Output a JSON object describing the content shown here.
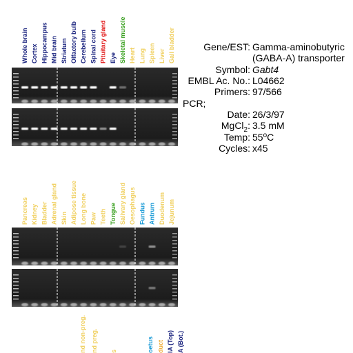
{
  "lanes": {
    "top": [
      {
        "label": "Whole brain",
        "color": "#1a237e"
      },
      {
        "label": "Cortex",
        "color": "#1a237e"
      },
      {
        "label": "Hippocampus",
        "color": "#1a237e"
      },
      {
        "label": "Mid brain",
        "color": "#1a237e"
      },
      {
        "label": "Striatum",
        "color": "#1a237e"
      },
      {
        "label": "Olfactory bulb",
        "color": "#1a237e"
      },
      {
        "label": "Cerebellum",
        "color": "#1a237e"
      },
      {
        "label": "Spinal cord",
        "color": "#1a237e"
      },
      {
        "label": "Pituitary gland",
        "color": "#e01010"
      },
      {
        "label": "Eye",
        "color": "#1a237e"
      },
      {
        "label": "Skeletal muscle",
        "color": "#3aa020"
      },
      {
        "label": "Heart",
        "color": "#f0d060"
      },
      {
        "label": "Lung",
        "color": "#f0d060"
      },
      {
        "label": "Spleen",
        "color": "#f0d060"
      },
      {
        "label": "Liver",
        "color": "#f0d060"
      },
      {
        "label": "Gall bladder",
        "color": "#f0d060"
      }
    ],
    "middle": [
      {
        "label": "Pancreas",
        "color": "#f0d060"
      },
      {
        "label": "Kidney",
        "color": "#f0d060"
      },
      {
        "label": "Bladder",
        "color": "#f0d060"
      },
      {
        "label": "Adrenal gland",
        "color": "#f0d060"
      },
      {
        "label": "Skin",
        "color": "#f0d060"
      },
      {
        "label": "Adipose tissue",
        "color": "#f0d060"
      },
      {
        "label": "Long bone",
        "color": "#f0d060"
      },
      {
        "label": "Paw",
        "color": "#f0d060"
      },
      {
        "label": "Teeth",
        "color": "#f0d060"
      },
      {
        "label": "Tongue",
        "color": "#3aa020"
      },
      {
        "label": "Salivary gland",
        "color": "#f0d060"
      },
      {
        "label": "Oesophagus",
        "color": "#f0d060"
      },
      {
        "label": "Fundus",
        "color": "#1a9ad6"
      },
      {
        "label": "Antrum",
        "color": "#1a9ad6"
      },
      {
        "label": "Duodenum",
        "color": "#f0d060"
      },
      {
        "label": "Jejunum",
        "color": "#f0d060"
      }
    ],
    "bottom": [
      {
        "label": "nd non-preg.",
        "color": "#f0d060"
      },
      {
        "label": "nd preg.",
        "color": "#f0d060"
      },
      {
        "label": "s",
        "color": "#f0d060"
      },
      {
        "label": "oetus",
        "color": "#1a9ad6"
      },
      {
        "label": "duct",
        "color": "#f0b040"
      },
      {
        "label": "IA (Top)",
        "color": "#1a237e"
      },
      {
        "label": "A (Bot.)",
        "color": "#1a237e"
      }
    ]
  },
  "info": {
    "gene_label": "Gene/EST:",
    "gene_lines": [
      "Gamma-aminobutyric",
      "(GABA-A) transporter"
    ],
    "symbol_label": "Symbol:",
    "symbol": "Gabt4",
    "embl_label": "EMBL Ac. No.:",
    "embl": "L04662",
    "primers_label": "Primers:",
    "primers": "97/566",
    "pcr": "PCR;",
    "date_label": "Date:",
    "date": "26/3/97",
    "mg_label": [
      "MgCl",
      "2",
      ":"
    ],
    "mg": "3.5 mM",
    "temp_label": "Temp:",
    "temp": [
      "55",
      "o",
      "C"
    ],
    "cycles_label": "Cycles:",
    "cycles": "x45"
  }
}
